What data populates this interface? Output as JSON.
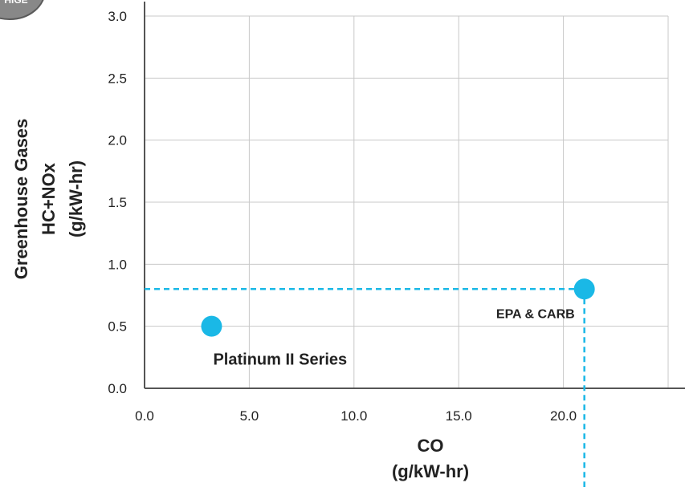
{
  "badge": {
    "text": "HIGE"
  },
  "chart_data": {
    "type": "scatter",
    "title": "",
    "xlabel_lines": [
      "CO",
      "(g/kW-hr)"
    ],
    "ylabel_lines": [
      "Greenhouse Gases",
      "HC+NOx",
      "(g/kW-hr)"
    ],
    "xlim": [
      0,
      25
    ],
    "ylim": [
      0,
      3.0
    ],
    "x_ticks": [
      "0.0",
      "5.0",
      "10.0",
      "15.0",
      "20.0"
    ],
    "y_ticks": [
      "0.0",
      "0.5",
      "1.0",
      "1.5",
      "2.0",
      "2.5",
      "3.0"
    ],
    "grid": true,
    "points": [
      {
        "label": "Platinum II Series",
        "x": 3.2,
        "y": 0.5
      },
      {
        "label": "EPA & CARB",
        "x": 21.0,
        "y": 0.8
      }
    ],
    "reference_lines": {
      "x": 21.0,
      "y": 0.8
    },
    "colors": {
      "point": "#1ab8e6",
      "reference": "#1ab8e6",
      "grid": "#c8c8c8",
      "axis": "#555555",
      "badge_fill": "#888888"
    }
  }
}
